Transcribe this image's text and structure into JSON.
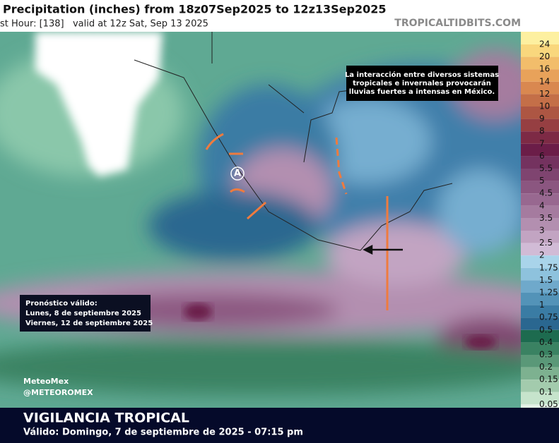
{
  "header": {
    "title": "Precipitation (inches) from 18z07Sep2025 to 12z13Sep2025",
    "subtitle": "st Hour: [138]   valid at 12z Sat, Sep 13 2025",
    "source": "TROPICALTIDBITS.COM"
  },
  "annotation": {
    "lines": [
      "La interacción entre diversos sistemas",
      "tropicales e invernales provocarán",
      "lluvias fuertes a intensas en México."
    ]
  },
  "forecast_box": {
    "lines": [
      "Pronóstico válido:",
      "Lunes, 8 de septiembre 2025",
      "Viernes, 12 de septiembre 2025"
    ]
  },
  "map_marker": "A",
  "credits": [
    "MeteoMex",
    "@METEOROMEX"
  ],
  "footer": {
    "title": "VIGILANCIA TROPICAL",
    "subtitle": "Válido: Domingo, 7 de septiembre de 2025 - 07:15 pm"
  },
  "legend": {
    "labels": [
      "24",
      "20",
      "16",
      "14",
      "12",
      "10",
      "9",
      "8",
      "7",
      "6",
      "5.5",
      "5",
      "4.5",
      "4",
      "3.5",
      "3",
      "2.5",
      "2",
      "1.75",
      "1.5",
      "1.25",
      "1",
      "0.75",
      "0.5",
      "0.4",
      "0.3",
      "0.2",
      "0.15",
      "0.1",
      "0.05"
    ],
    "colors": [
      "#fdf0a0",
      "#f9d77d",
      "#f2bd6b",
      "#e8a25a",
      "#d98850",
      "#c46f48",
      "#ad5643",
      "#963f42",
      "#7d2a45",
      "#6b1d48",
      "#74325f",
      "#7f4470",
      "#8b5680",
      "#986890",
      "#a57b9f",
      "#b38fb0",
      "#c2a4c2",
      "#d1bbd6",
      "#a9d4ea",
      "#8ec2dd",
      "#6fa9cb",
      "#5393b8",
      "#3a7ca4",
      "#2a6790",
      "#1d6b4f",
      "#3a8262",
      "#5a9878",
      "#7db190",
      "#a3cbad",
      "#c6e4cc",
      "#e4f3e6"
    ]
  }
}
